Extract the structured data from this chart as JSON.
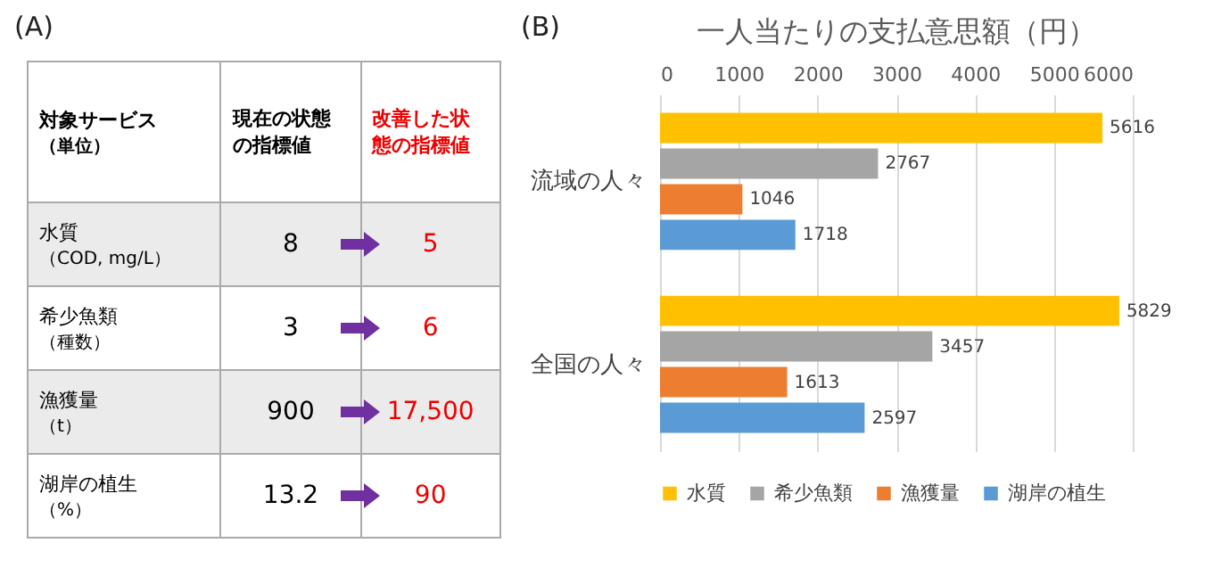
{
  "chart_data": [
    {
      "type": "other",
      "title": "(A)",
      "annotations": [
        "対象サービス（単位）",
        "現在の状態の指標値",
        "改善した状態の指標値",
        "水質（COD, mg/L）",
        "8",
        "5",
        "希少魚類（種数）",
        "3",
        "6",
        "漁獲量（t）",
        "900",
        "17,500",
        "湖岸の植生（%）",
        "13.2",
        "90"
      ]
    },
    {
      "type": "bar",
      "orientation": "horizontal",
      "title": "一人当たりの支払意思額（円）",
      "annotations": [
        "(B)"
      ],
      "categories": [
        "流域の人々",
        "全国の人々"
      ],
      "series": [
        {
          "name": "水質",
          "color": "#ffc000",
          "values": [
            5616,
            5829
          ]
        },
        {
          "name": "希少魚類",
          "color": "#a5a5a5",
          "values": [
            2767,
            3457
          ]
        },
        {
          "name": "漁獲量",
          "color": "#ed7d31",
          "values": [
            1046,
            1613
          ]
        },
        {
          "name": "湖岸の植生",
          "color": "#5b9bd5",
          "values": [
            1718,
            2597
          ]
        }
      ],
      "xlim": [
        0,
        6000
      ],
      "xticks": [
        0,
        1000,
        2000,
        3000,
        4000,
        5000,
        6000
      ],
      "grid": "x",
      "legend": "bottom",
      "data_labels": true
    }
  ]
}
